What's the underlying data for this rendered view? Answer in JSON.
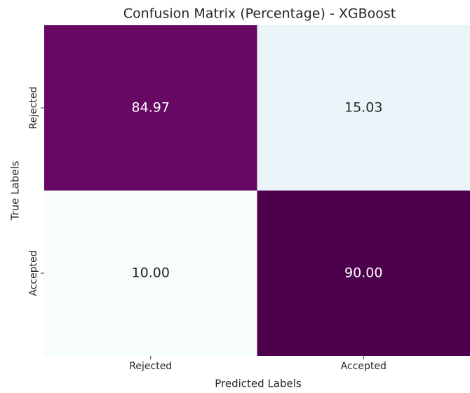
{
  "chart_data": {
    "type": "heatmap",
    "title": "Confusion Matrix (Percentage) - XGBoost",
    "x_label": "Predicted Labels",
    "y_label": "True Labels",
    "x_categories": [
      "Rejected",
      "Accepted"
    ],
    "y_categories": [
      "Rejected",
      "Accepted"
    ],
    "values": [
      [
        84.97,
        15.03
      ],
      [
        10.0,
        90.0
      ]
    ],
    "value_labels": [
      [
        "84.97",
        "15.03"
      ],
      [
        "10.00",
        "90.00"
      ]
    ],
    "colormap": [
      "#f7fcfd",
      "#e0ecf4",
      "#bfd3e6",
      "#9ebcda",
      "#8c96c6",
      "#8c6bb1",
      "#88419d",
      "#810f7c",
      "#4d004b"
    ]
  }
}
